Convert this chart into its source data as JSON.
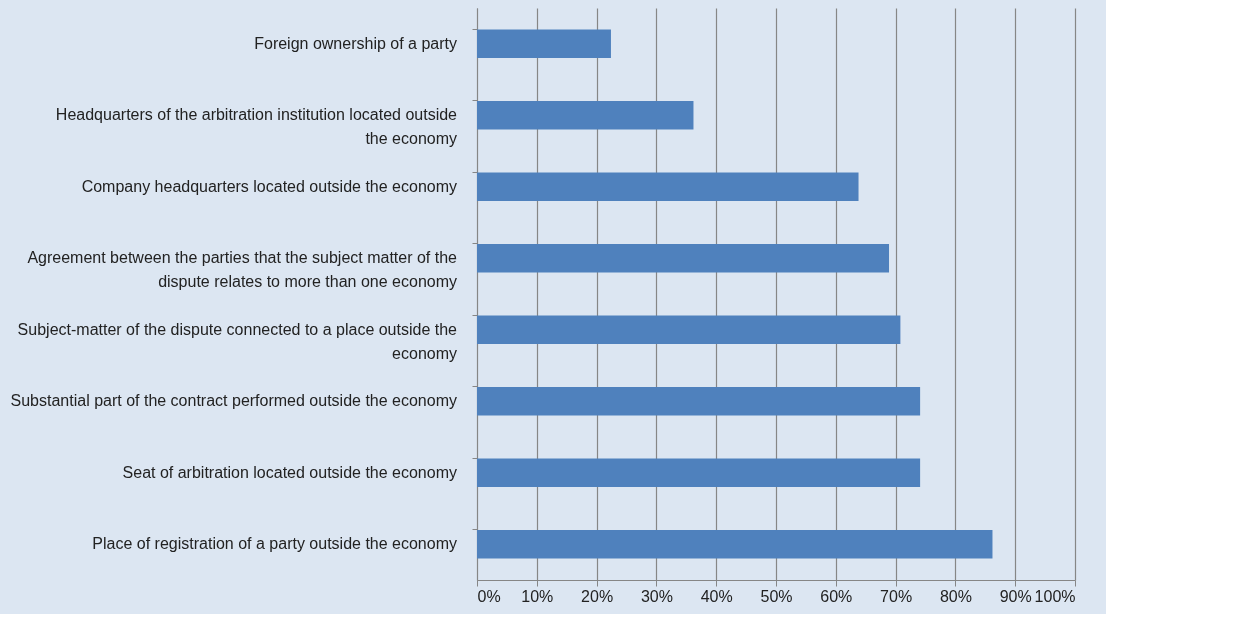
{
  "chart_data": {
    "type": "bar",
    "orientation": "horizontal",
    "categories": [
      "Foreign ownership of a party",
      "Headquarters of the arbitration institution located outside the economy",
      "Company headquarters located outside the economy",
      "Agreement between the parties that the subject matter of the dispute relates to more than one economy",
      "Subject-matter of the dispute connected to a place outside the economy",
      "Substantial part of the contract performed outside the economy",
      "Seat of arbitration located outside the economy",
      "Place of registration of a party outside the economy"
    ],
    "values": [
      22.4,
      36.2,
      63.8,
      68.9,
      70.8,
      74.1,
      74.1,
      86.2
    ],
    "color": "#4f81bd",
    "xlim": [
      0,
      100
    ],
    "xticks": [
      {
        "value": 0,
        "label": "0%"
      },
      {
        "value": 10,
        "label": "10%"
      },
      {
        "value": 20,
        "label": "20%"
      },
      {
        "value": 30,
        "label": "30%"
      },
      {
        "value": 40,
        "label": "40%"
      },
      {
        "value": 50,
        "label": "50%"
      },
      {
        "value": 60,
        "label": "60%"
      },
      {
        "value": 70,
        "label": "70%"
      },
      {
        "value": 80,
        "label": "80%"
      },
      {
        "value": 90,
        "label": "90%"
      },
      {
        "value": 100,
        "label": "100%"
      }
    ],
    "grid": "x"
  }
}
